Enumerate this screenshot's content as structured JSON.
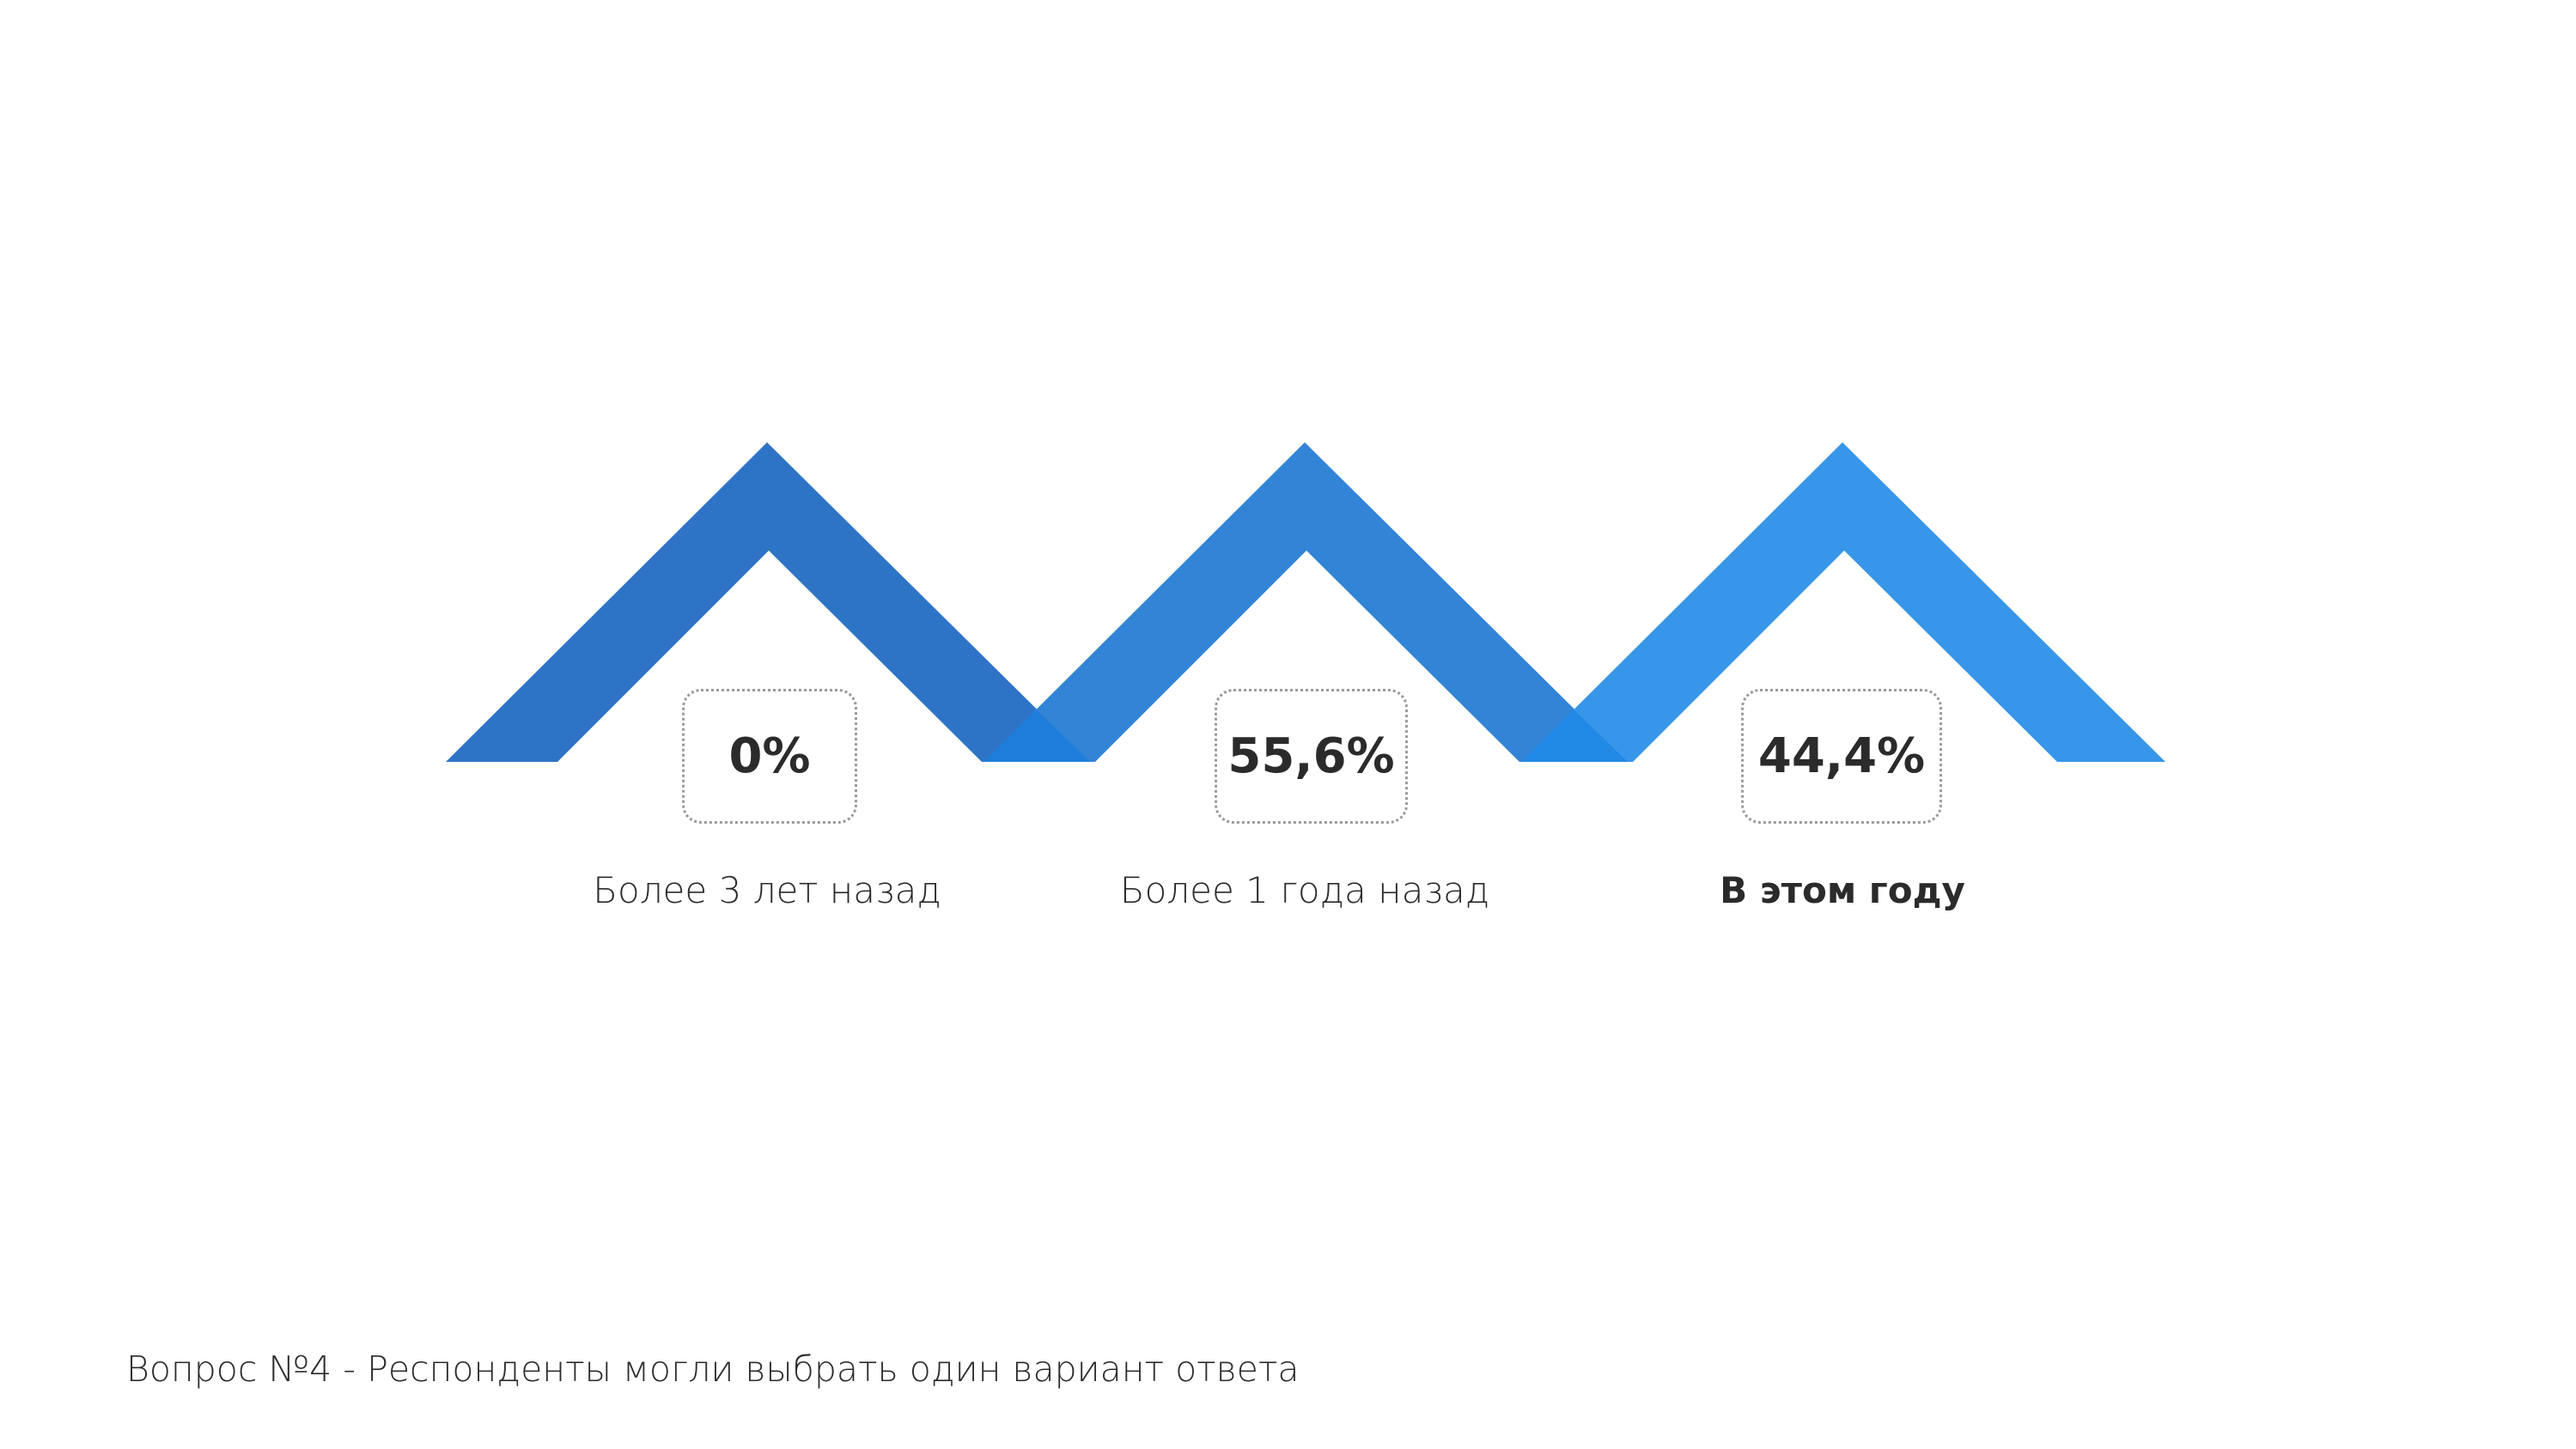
{
  "items": [
    {
      "value": "0%",
      "label": "Более 3 лет назад"
    },
    {
      "value": "55,6%",
      "label": "Более 1 года назад"
    },
    {
      "value": "44,4%",
      "label": "В этом году"
    }
  ],
  "footnote": "Вопрос №4 - Респонденты могли выбрать один вариант ответа"
}
